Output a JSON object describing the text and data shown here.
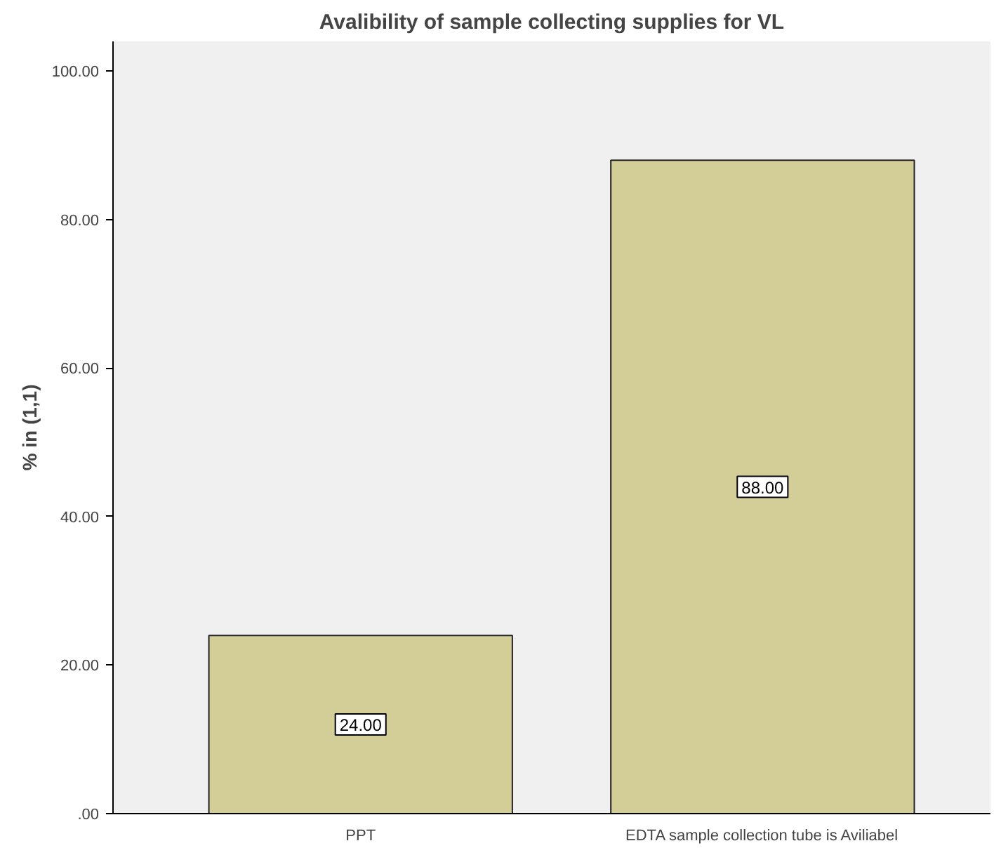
{
  "chart_data": {
    "type": "bar",
    "title": "Avalibility of sample collecting supplies for VL",
    "ylabel": "% in (1,1)",
    "categories": [
      "PPT",
      "EDTA sample collection tube is Aviliabel"
    ],
    "values": [
      24,
      88
    ],
    "color": "#d3ce98",
    "value_labels": [
      "24.00",
      "88.00"
    ],
    "ylim": [
      0,
      104
    ],
    "yticks": [
      {
        "value": 0,
        "label": ".00"
      },
      {
        "value": 20,
        "label": "20.00"
      },
      {
        "value": 40,
        "label": "40.00"
      },
      {
        "value": 60,
        "label": "60.00"
      },
      {
        "value": 80,
        "label": "80.00"
      },
      {
        "value": 100,
        "label": "100.00"
      }
    ],
    "grid": false
  }
}
